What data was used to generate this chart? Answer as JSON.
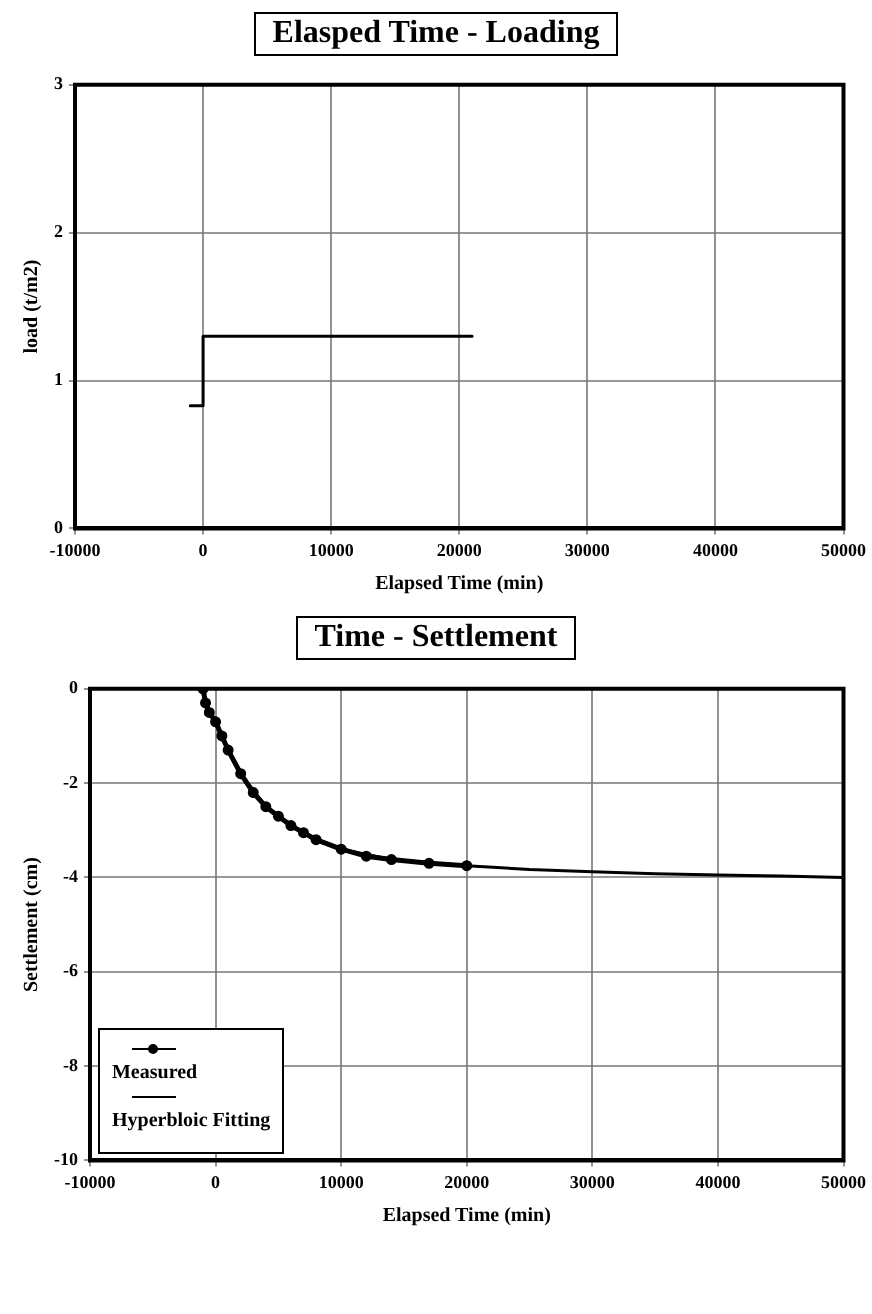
{
  "chart_data": [
    {
      "type": "line",
      "title": "Elasped Time  - Loading",
      "xlabel": "Elapsed Time (min)",
      "ylabel": "load (t/m2)",
      "xlim": [
        -10000,
        50000
      ],
      "xticks": [
        -10000,
        0,
        10000,
        20000,
        30000,
        40000,
        50000
      ],
      "ylim": [
        0,
        3
      ],
      "yticks": [
        0,
        1,
        2,
        3
      ],
      "grid": true,
      "legend": false,
      "series": [
        {
          "color": "#000000",
          "x": [
            -1000,
            0,
            0,
            21000
          ],
          "values": [
            0.83,
            0.83,
            1.3,
            1.3
          ]
        }
      ]
    },
    {
      "type": "line",
      "title": "Time - Settlement",
      "xlabel": "Elapsed Time (min)",
      "ylabel": "Settlement (cm)",
      "xlim": [
        -10000,
        50000
      ],
      "xticks": [
        -10000,
        0,
        10000,
        20000,
        30000,
        40000,
        50000
      ],
      "ylim": [
        -10,
        0
      ],
      "yticks": [
        -10,
        -8,
        -6,
        -4,
        -2,
        0
      ],
      "grid": true,
      "legend": "bottom left",
      "series": [
        {
          "name": "Measured",
          "color": "#000000",
          "marker": "circle",
          "x": [
            -1000,
            -800,
            -500,
            0,
            500,
            1000,
            2000,
            3000,
            4000,
            5000,
            6000,
            7000,
            8000,
            10000,
            12000,
            14000,
            17000,
            20000
          ],
          "values": [
            0,
            -0.3,
            -0.5,
            -0.7,
            -1.0,
            -1.3,
            -1.8,
            -2.2,
            -2.5,
            -2.7,
            -2.9,
            -3.05,
            -3.2,
            -3.4,
            -3.55,
            -3.62,
            -3.7,
            -3.75
          ]
        },
        {
          "name": "Hyperbloic Fitting",
          "color": "#000000",
          "marker": "none",
          "x": [
            0,
            1000,
            2000,
            4000,
            6000,
            8000,
            10000,
            14000,
            20000,
            25000,
            30000,
            35000,
            40000,
            45000,
            50000
          ],
          "values": [
            -0.7,
            -1.3,
            -1.8,
            -2.5,
            -2.9,
            -3.2,
            -3.4,
            -3.62,
            -3.75,
            -3.83,
            -3.88,
            -3.92,
            -3.95,
            -3.97,
            -4.0
          ]
        }
      ]
    }
  ]
}
